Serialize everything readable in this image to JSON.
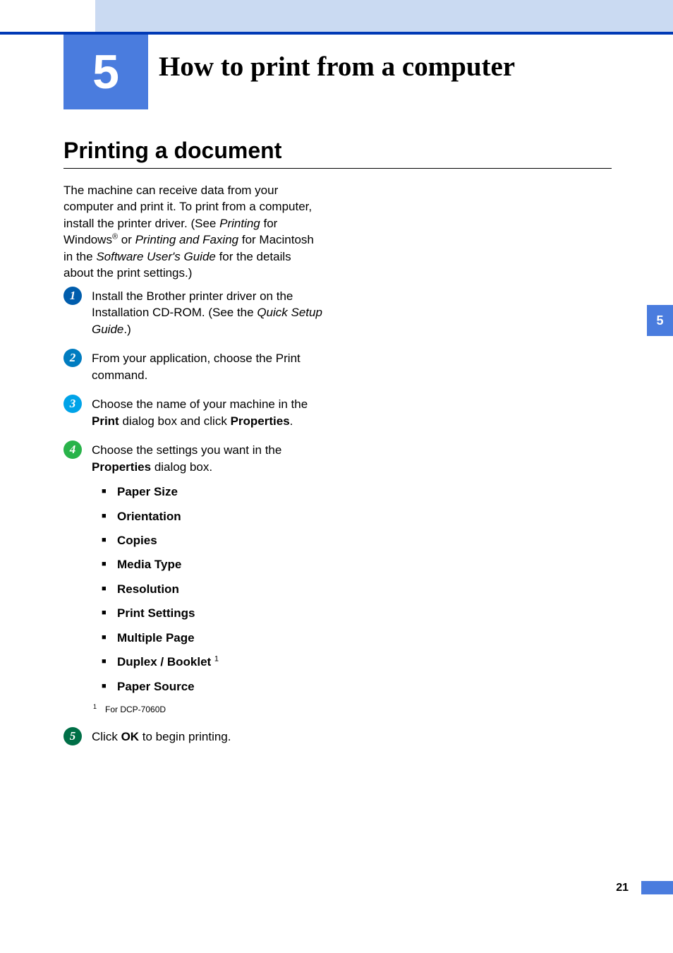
{
  "chapter": {
    "number": "5",
    "title": "How to print from a computer"
  },
  "section": {
    "title": "Printing a document"
  },
  "intro": {
    "part1": "The machine can receive data from your computer and print it. To print from a computer, install the printer driver. (See ",
    "printing_italic": "Printing",
    "part2": " for Windows",
    "reg": "®",
    "part3": " or ",
    "faxing_italic": "Printing and Faxing",
    "part4": " for Macintosh in the ",
    "guide_italic": "Software User's Guide",
    "part5": " for the details about the print settings.)"
  },
  "steps": {
    "s1": {
      "num": "1",
      "text1": "Install the Brother printer driver on the Installation CD-ROM. (See the ",
      "italic": "Quick Setup Guide",
      "text2": ".)"
    },
    "s2": {
      "num": "2",
      "text": "From your application, choose the Print command."
    },
    "s3": {
      "num": "3",
      "text1": "Choose the name of your machine in the ",
      "bold1": "Print",
      "text2": " dialog box and click ",
      "bold2": "Properties",
      "text3": "."
    },
    "s4": {
      "num": "4",
      "text1": "Choose the settings you want in the ",
      "bold1": "Properties",
      "text2": " dialog box."
    },
    "s5": {
      "num": "5",
      "text1": "Click ",
      "bold1": "OK",
      "text2": " to begin printing."
    }
  },
  "settings": {
    "items": [
      "Paper Size",
      "Orientation",
      "Copies",
      "Media Type",
      "Resolution",
      "Print Settings",
      "Multiple Page",
      "Duplex / Booklet",
      "Paper Source"
    ],
    "duplex_sup": "1"
  },
  "footnote": {
    "num": "1",
    "text": "For DCP-7060D"
  },
  "sidetab": "5",
  "pagenum": "21",
  "colors": {
    "header_bg": "#cadaf2",
    "blue_line": "#0039b5",
    "chapter_bg": "#4a7cde",
    "bullet1": "#005dac",
    "bullet2": "#007cc0",
    "bullet3": "#00a3e8",
    "bullet4": "#29b34a",
    "bullet5": "#006f47"
  }
}
